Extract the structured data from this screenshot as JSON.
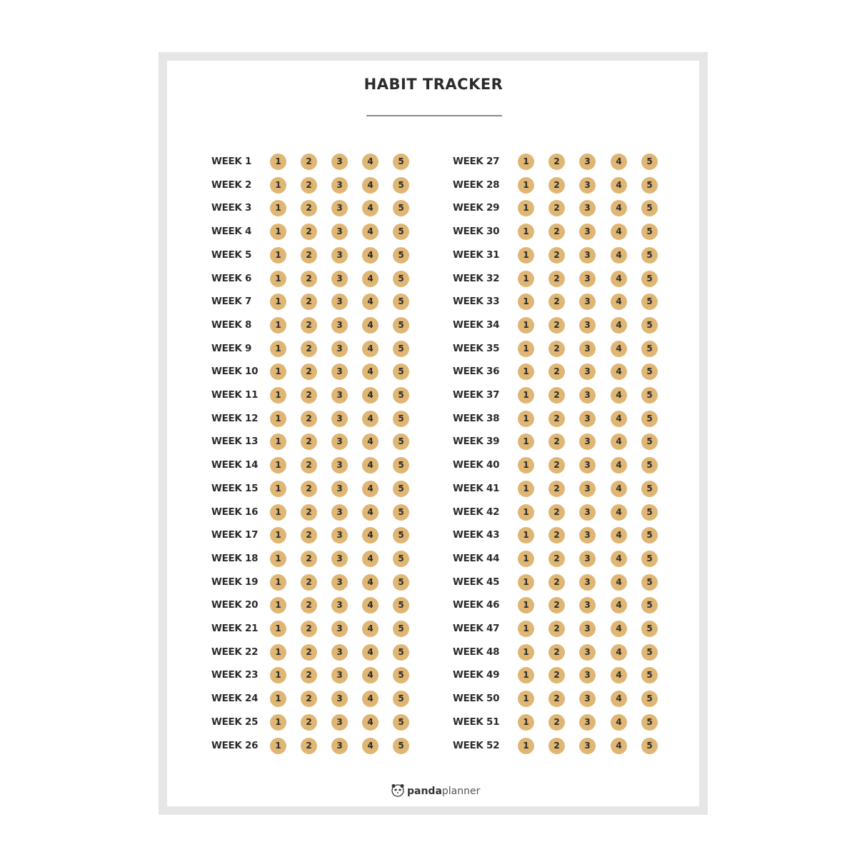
{
  "title": "HABIT TRACKER",
  "accent_color": "#dfb673",
  "day_numbers": [
    "1",
    "2",
    "3",
    "4",
    "5"
  ],
  "weeks": [
    "WEEK 1",
    "WEEK 2",
    "WEEK 3",
    "WEEK 4",
    "WEEK 5",
    "WEEK 6",
    "WEEK 7",
    "WEEK 8",
    "WEEK 9",
    "WEEK 10",
    "WEEK 11",
    "WEEK 12",
    "WEEK 13",
    "WEEK 14",
    "WEEK 15",
    "WEEK 16",
    "WEEK 17",
    "WEEK 18",
    "WEEK 19",
    "WEEK 20",
    "WEEK 21",
    "WEEK 22",
    "WEEK 23",
    "WEEK 24",
    "WEEK 25",
    "WEEK 26",
    "WEEK 27",
    "WEEK 28",
    "WEEK 29",
    "WEEK 30",
    "WEEK 31",
    "WEEK 32",
    "WEEK 33",
    "WEEK 34",
    "WEEK 35",
    "WEEK 36",
    "WEEK 37",
    "WEEK 38",
    "WEEK 39",
    "WEEK 40",
    "WEEK 41",
    "WEEK 42",
    "WEEK 43",
    "WEEK 44",
    "WEEK 45",
    "WEEK 46",
    "WEEK 47",
    "WEEK 48",
    "WEEK 49",
    "WEEK 50",
    "WEEK 51",
    "WEEK 52"
  ],
  "logo": {
    "bold": "panda",
    "light": "planner",
    "icon": "panda-icon"
  }
}
